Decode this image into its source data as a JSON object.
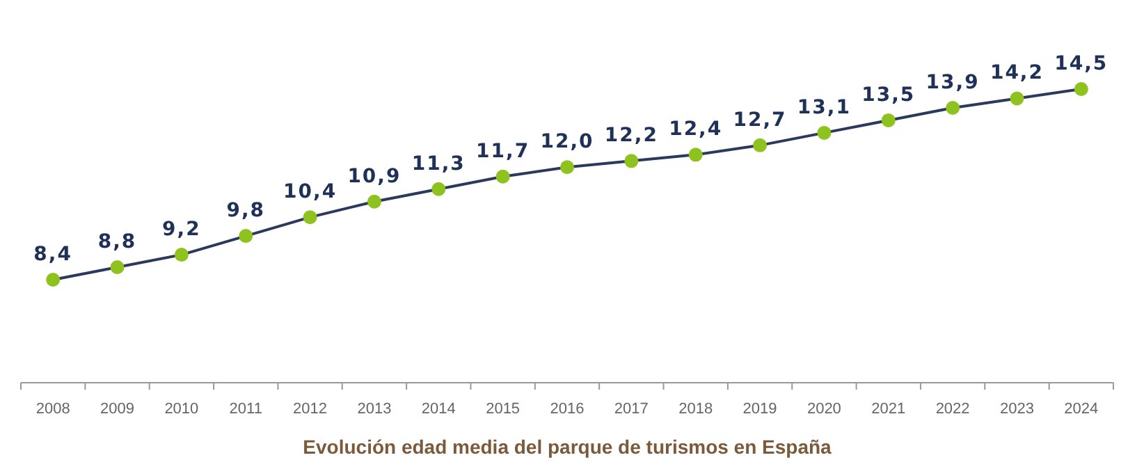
{
  "chart_data": {
    "type": "line",
    "title": "Evolución edad media del parque de turismos en España",
    "categories": [
      "2008",
      "2009",
      "2010",
      "2011",
      "2012",
      "2013",
      "2014",
      "2015",
      "2016",
      "2017",
      "2018",
      "2019",
      "2020",
      "2021",
      "2022",
      "2023",
      "2024"
    ],
    "series": [
      {
        "color": "#2b3a5c",
        "values": [
          8.4,
          8.8,
          9.2,
          9.8,
          10.4,
          10.9,
          11.3,
          11.7,
          12.0,
          12.2,
          12.4,
          12.7,
          13.1,
          13.5,
          13.9,
          14.2,
          14.5
        ],
        "value_labels": [
          "8,4",
          "8,8",
          "9,2",
          "9,8",
          "10,4",
          "10,9",
          "11,3",
          "11,7",
          "12,0",
          "12,2",
          "12,4",
          "12,7",
          "13,1",
          "13,5",
          "13,9",
          "14,2",
          "14,5"
        ]
      }
    ],
    "tick_labels": "x",
    "marker": "circle",
    "line_style": "solid"
  }
}
